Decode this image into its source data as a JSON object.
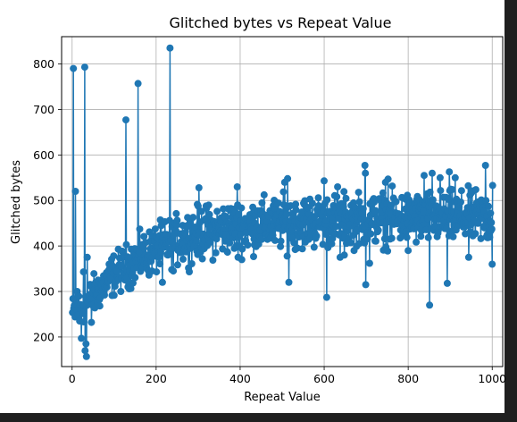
{
  "chart_data": {
    "type": "line",
    "title": "Glitched bytes vs Repeat Value",
    "xlabel": "Repeat Value",
    "ylabel": "Glitched bytes",
    "xlim": [
      -25,
      1025
    ],
    "ylim": [
      135,
      860
    ],
    "xticks": [
      0,
      200,
      400,
      600,
      800,
      1000
    ],
    "yticks": [
      200,
      300,
      400,
      500,
      600,
      700,
      800
    ],
    "grid": true,
    "marker": "circle",
    "series": [
      {
        "color": "#1f77b4",
        "x_start": 1,
        "x_step": 1,
        "trend": [
          [
            1,
            250
          ],
          [
            20,
            265
          ],
          [
            40,
            280
          ],
          [
            60,
            300
          ],
          [
            80,
            320
          ],
          [
            100,
            338
          ],
          [
            130,
            355
          ],
          [
            160,
            372
          ],
          [
            200,
            392
          ],
          [
            250,
            412
          ],
          [
            300,
            428
          ],
          [
            400,
            442
          ],
          [
            500,
            450
          ],
          [
            600,
            456
          ],
          [
            700,
            458
          ],
          [
            800,
            460
          ],
          [
            900,
            462
          ],
          [
            1000,
            462
          ]
        ],
        "spikes": [
          [
            3,
            790
          ],
          [
            8,
            520
          ],
          [
            12,
            300
          ],
          [
            18,
            235
          ],
          [
            22,
            197
          ],
          [
            27,
            343
          ],
          [
            30,
            793
          ],
          [
            31,
            170
          ],
          [
            33,
            185
          ],
          [
            34,
            157
          ],
          [
            36,
            375
          ],
          [
            46,
            232
          ],
          [
            128,
            677
          ],
          [
            157,
            757
          ],
          [
            233,
            835
          ],
          [
            237,
            348
          ],
          [
            215,
            320
          ],
          [
            302,
            528
          ],
          [
            393,
            530
          ],
          [
            395,
            375
          ],
          [
            506,
            540
          ],
          [
            513,
            548
          ],
          [
            516,
            320
          ],
          [
            600,
            543
          ],
          [
            606,
            287
          ],
          [
            632,
            530
          ],
          [
            638,
            375
          ],
          [
            648,
            380
          ],
          [
            697,
            577
          ],
          [
            698,
            560
          ],
          [
            699,
            315
          ],
          [
            708,
            362
          ],
          [
            746,
            540
          ],
          [
            752,
            547
          ],
          [
            800,
            390
          ],
          [
            838,
            555
          ],
          [
            851,
            270
          ],
          [
            857,
            560
          ],
          [
            876,
            550
          ],
          [
            893,
            318
          ],
          [
            898,
            563
          ],
          [
            912,
            550
          ],
          [
            944,
            375
          ],
          [
            984,
            577
          ],
          [
            1000,
            360
          ],
          [
            1001,
            533
          ]
        ]
      }
    ]
  }
}
